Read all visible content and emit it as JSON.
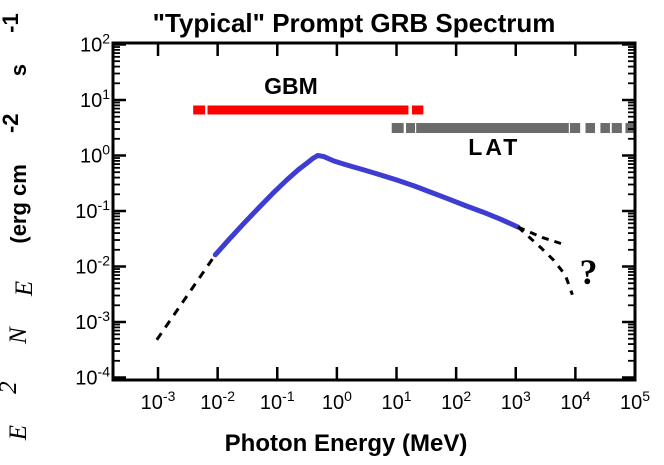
{
  "title": "\"Typical\" Prompt GRB Spectrum",
  "axes": {
    "x_label": "Photon Energy (MeV)",
    "tick_base": "10",
    "y_label": {
      "e": "E",
      "e_sup": "2",
      "n": " N",
      "n_sub": "E",
      "units_1": " (erg cm",
      "units_1_sup": "-2",
      "units_2": " s",
      "units_2_sup": "-1",
      "units_3": ")"
    }
  },
  "annotations": {
    "gbm_label": "GBM",
    "lat_label": "LAT",
    "question_mark": "?"
  },
  "colors": {
    "curve_blue": "#3d3dd1",
    "gbm_red": "#ff0000",
    "lat_gray": "#6b6b6b",
    "axis_black": "#000000",
    "background": "#ffffff"
  },
  "chart_data": {
    "type": "line",
    "title": "\"Typical\" Prompt GRB Spectrum",
    "xlabel": "Photon Energy (MeV)",
    "ylabel": "E^2 N_E (erg cm^-2 s^-1)",
    "x_scale": "log10 of photon energy in MeV",
    "y_scale": "log10 of E^2 N_E in erg cm^-2 s^-1",
    "xlim_log": [
      -3.755,
      5.0
    ],
    "ylim_log": [
      -4.045,
      2.027
    ],
    "x_major_ticks_log": [
      -3,
      -2,
      -1,
      0,
      1,
      2,
      3,
      4,
      5
    ],
    "y_major_ticks_log": [
      2,
      1,
      0,
      -1,
      -2,
      -3,
      -4
    ],
    "grid": false,
    "series": [
      {
        "name": "low-energy-extrapolation",
        "style": "dashed",
        "color": "#000000",
        "width": 3,
        "dash": "8 7",
        "points_log": [
          [
            -3.02,
            -3.32
          ],
          [
            -2.04,
            -1.79
          ]
        ]
      },
      {
        "name": "band-spectrum-observed",
        "style": "solid",
        "color": "#3d3dd1",
        "width": 5,
        "dash": "",
        "points_log": [
          [
            -2.04,
            -1.79
          ],
          [
            -1.8,
            -1.5
          ],
          [
            -1.55,
            -1.21
          ],
          [
            -1.3,
            -0.93
          ],
          [
            -1.05,
            -0.655
          ],
          [
            -0.85,
            -0.45
          ],
          [
            -0.65,
            -0.26
          ],
          [
            -0.5,
            -0.135
          ],
          [
            -0.4,
            -0.05
          ],
          [
            -0.32,
            0.0
          ],
          [
            -0.22,
            -0.02
          ],
          [
            -0.05,
            -0.1
          ],
          [
            0.166,
            -0.171
          ],
          [
            0.45,
            -0.26
          ],
          [
            0.73,
            -0.35
          ],
          [
            1.005,
            -0.441
          ],
          [
            1.3,
            -0.55
          ],
          [
            1.57,
            -0.66
          ],
          [
            1.844,
            -0.771
          ],
          [
            2.15,
            -0.9
          ],
          [
            2.45,
            -1.02
          ],
          [
            2.75,
            -1.15
          ],
          [
            3.04,
            -1.29
          ]
        ]
      },
      {
        "name": "high-energy-continuation",
        "style": "dashed",
        "color": "#000000",
        "width": 3,
        "dash": "7 6",
        "points_log": [
          [
            3.04,
            -1.29
          ],
          [
            3.45,
            -1.48
          ],
          [
            3.8,
            -1.6
          ]
        ]
      },
      {
        "name": "high-energy-cutoff",
        "style": "dashed",
        "color": "#000000",
        "width": 3,
        "dash": "7 7",
        "points_log": [
          [
            3.04,
            -1.29
          ],
          [
            3.41,
            -1.65
          ],
          [
            3.63,
            -1.88
          ],
          [
            3.83,
            -2.15
          ],
          [
            3.95,
            -2.51
          ]
        ]
      }
    ],
    "instrument_bands": [
      {
        "label": "GBM",
        "color": "#ff0000",
        "y_log": 0.82,
        "thickness": 9,
        "segments_log": [
          [
            -2.41,
            -2.21
          ],
          [
            -2.17,
            1.2
          ],
          [
            1.26,
            1.45
          ]
        ],
        "label_pos_log": [
          -0.77,
          1.25
        ]
      },
      {
        "label": "LAT",
        "color": "#6b6b6b",
        "y_log": 0.495,
        "thickness": 10,
        "segments_log": [
          [
            0.92,
            1.12
          ],
          [
            1.16,
            1.31
          ],
          [
            1.33,
            3.89
          ],
          [
            3.91,
            4.08
          ],
          [
            4.17,
            4.33
          ],
          [
            4.42,
            4.58
          ],
          [
            4.61,
            4.78
          ],
          [
            4.84,
            4.98
          ]
        ],
        "label_pos_log": [
          2.64,
          0.15
        ]
      }
    ],
    "annotations": [
      {
        "text": "?",
        "pos_log": [
          4.22,
          -2.1
        ]
      }
    ],
    "legend": "none"
  }
}
